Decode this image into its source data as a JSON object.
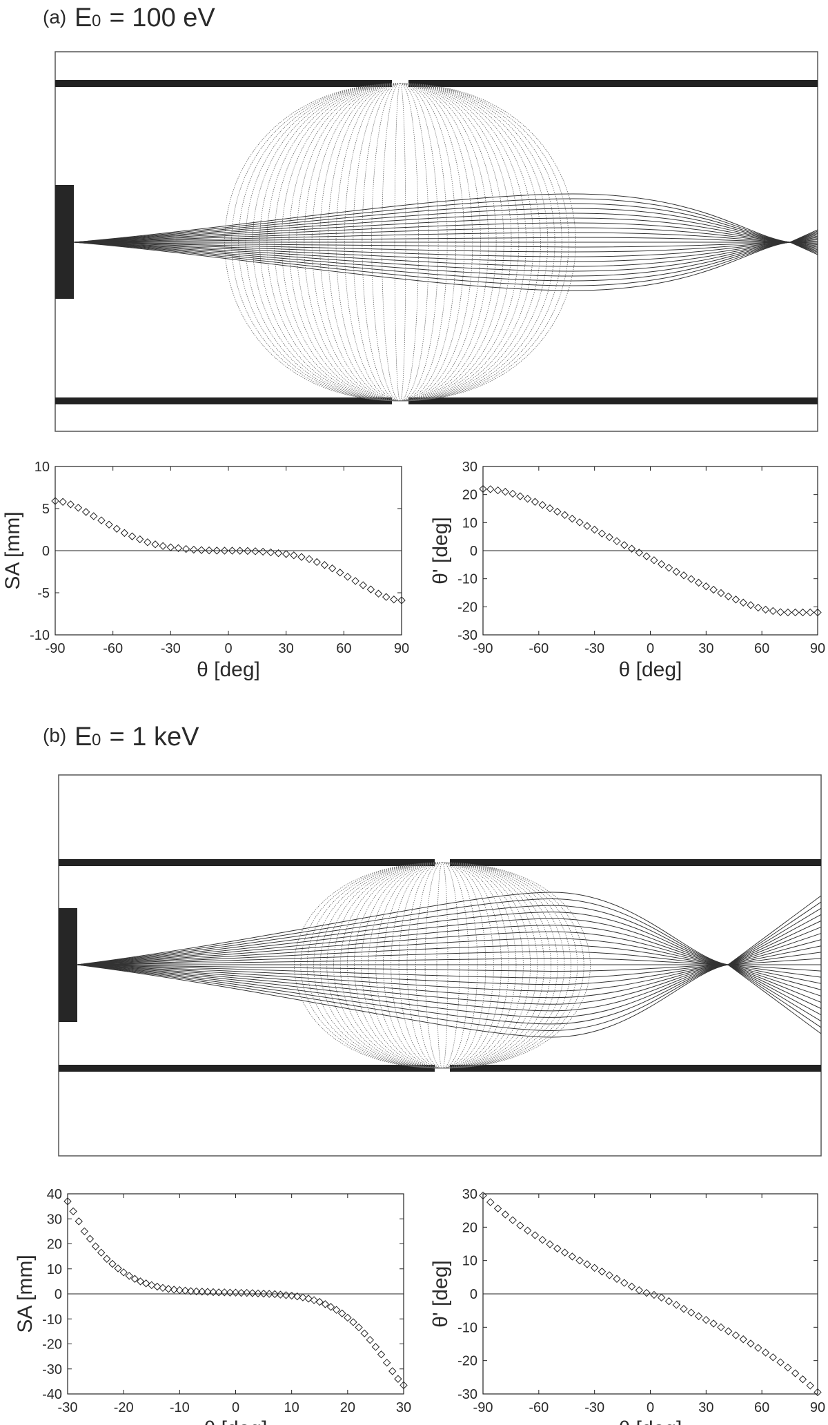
{
  "panels": [
    {
      "tag": "(a)",
      "energy_symbol": "E",
      "energy_sub": "0",
      "energy_rest": " = 100 eV"
    },
    {
      "tag": "(b)",
      "energy_symbol": "E",
      "energy_sub": "0",
      "energy_rest": " = 1 keV"
    }
  ],
  "colors": {
    "ink": "#222222",
    "ray": "#333333",
    "equipotential": "#666666",
    "frame": "#555555"
  },
  "chart_data": [
    {
      "type": "scatter",
      "panel": "(a)",
      "xlabel": "θ [deg]",
      "ylabel": "SA [mm]",
      "xlim": [
        -90,
        90
      ],
      "ylim": [
        -10,
        10
      ],
      "xticks": [
        -90,
        -60,
        -30,
        0,
        30,
        60,
        90
      ],
      "yticks": [
        -10,
        -5,
        0,
        5,
        10
      ],
      "marker": "diamond",
      "series": [
        {
          "x": [
            -90,
            -86,
            -82,
            -78,
            -74,
            -70,
            -66,
            -62,
            -58,
            -54,
            -50,
            -46,
            -42,
            -38,
            -34,
            -30,
            -26,
            -22,
            -18,
            -14,
            -10,
            -6,
            -2,
            2,
            6,
            10,
            14,
            18,
            22,
            26,
            30,
            34,
            38,
            42,
            46,
            50,
            54,
            58,
            62,
            66,
            70,
            74,
            78,
            82,
            86,
            90
          ],
          "y": [
            5.9,
            5.8,
            5.5,
            5.1,
            4.6,
            4.1,
            3.6,
            3.1,
            2.6,
            2.1,
            1.7,
            1.35,
            1.0,
            0.75,
            0.55,
            0.4,
            0.3,
            0.2,
            0.12,
            0.07,
            0.03,
            0.01,
            0.0,
            0.0,
            -0.01,
            -0.03,
            -0.07,
            -0.12,
            -0.2,
            -0.3,
            -0.4,
            -0.55,
            -0.75,
            -1.0,
            -1.35,
            -1.7,
            -2.1,
            -2.6,
            -3.1,
            -3.6,
            -4.1,
            -4.6,
            -5.1,
            -5.5,
            -5.8,
            -5.9
          ]
        }
      ]
    },
    {
      "type": "scatter",
      "panel": "(a)",
      "xlabel": "θ [deg]",
      "ylabel": "θ' [deg]",
      "xlim": [
        -90,
        90
      ],
      "ylim": [
        -30,
        30
      ],
      "xticks": [
        -90,
        -60,
        -30,
        0,
        30,
        60,
        90
      ],
      "yticks": [
        -30,
        -20,
        -10,
        0,
        10,
        20,
        30
      ],
      "marker": "diamond",
      "series": [
        {
          "x": [
            -90,
            -86,
            -82,
            -78,
            -74,
            -70,
            -66,
            -62,
            -58,
            -54,
            -50,
            -46,
            -42,
            -38,
            -34,
            -30,
            -26,
            -22,
            -18,
            -14,
            -10,
            -6,
            -2,
            2,
            6,
            10,
            14,
            18,
            22,
            26,
            30,
            34,
            38,
            42,
            46,
            50,
            54,
            58,
            62,
            66,
            70,
            74,
            78,
            82,
            86,
            90
          ],
          "y": [
            22.0,
            21.9,
            21.5,
            21.0,
            20.3,
            19.4,
            18.5,
            17.4,
            16.3,
            15.1,
            13.9,
            12.7,
            11.4,
            10.1,
            8.8,
            7.5,
            6.1,
            4.8,
            3.4,
            2.0,
            0.7,
            -0.7,
            -2.0,
            -3.4,
            -4.8,
            -6.1,
            -7.5,
            -8.8,
            -10.1,
            -11.4,
            -12.7,
            -13.9,
            -15.1,
            -16.3,
            -17.4,
            -18.5,
            -19.4,
            -20.3,
            -21.0,
            -21.5,
            -21.9,
            -22.0,
            -22.0,
            -22.0,
            -22.0,
            -22.0
          ]
        }
      ]
    },
    {
      "type": "scatter",
      "panel": "(b)",
      "xlabel": "θ [deg]",
      "ylabel": "SA [mm]",
      "xlim": [
        -30,
        30
      ],
      "ylim": [
        -40,
        40
      ],
      "xticks": [
        -30,
        -20,
        -10,
        0,
        10,
        20,
        30
      ],
      "yticks": [
        -40,
        -30,
        -20,
        -10,
        0,
        10,
        20,
        30,
        40
      ],
      "marker": "diamond",
      "series": [
        {
          "x": [
            -30,
            -29,
            -28,
            -27,
            -26,
            -25,
            -24,
            -23,
            -22,
            -21,
            -20,
            -19,
            -18,
            -17,
            -16,
            -15,
            -14,
            -13,
            -12,
            -11,
            -10,
            -9,
            -8,
            -7,
            -6,
            -5,
            -4,
            -3,
            -2,
            -1,
            0,
            1,
            2,
            3,
            4,
            5,
            6,
            7,
            8,
            9,
            10,
            11,
            12,
            13,
            14,
            15,
            16,
            17,
            18,
            19,
            20,
            21,
            22,
            23,
            24,
            25,
            26,
            27,
            28,
            29,
            30
          ],
          "y": [
            37,
            33,
            29,
            25,
            22,
            19,
            16.5,
            14,
            12,
            10.2,
            8.6,
            7.2,
            6.0,
            5.0,
            4.2,
            3.5,
            2.9,
            2.4,
            2.0,
            1.7,
            1.5,
            1.3,
            1.1,
            1.0,
            0.9,
            0.8,
            0.7,
            0.6,
            0.6,
            0.5,
            0.5,
            0.4,
            0.4,
            0.3,
            0.2,
            0.1,
            0.0,
            -0.1,
            -0.3,
            -0.5,
            -0.7,
            -1.0,
            -1.4,
            -1.9,
            -2.5,
            -3.2,
            -4.1,
            -5.2,
            -6.4,
            -7.8,
            -9.5,
            -11.3,
            -13.4,
            -15.8,
            -18.4,
            -21.2,
            -24.2,
            -27.5,
            -30.9,
            -34.0,
            -36.5
          ]
        }
      ]
    },
    {
      "type": "scatter",
      "panel": "(b)",
      "xlabel": "θ [deg]",
      "ylabel": "θ' [deg]",
      "xlim": [
        -90,
        90
      ],
      "ylim": [
        -30,
        30
      ],
      "xticks": [
        -90,
        -60,
        -30,
        0,
        30,
        60,
        90
      ],
      "yticks": [
        -30,
        -20,
        -10,
        0,
        10,
        20,
        30
      ],
      "marker": "diamond",
      "series": [
        {
          "x": [
            -90,
            -86,
            -82,
            -78,
            -74,
            -70,
            -66,
            -62,
            -58,
            -54,
            -50,
            -46,
            -42,
            -38,
            -34,
            -30,
            -26,
            -22,
            -18,
            -14,
            -10,
            -6,
            -2,
            2,
            6,
            10,
            14,
            18,
            22,
            26,
            30,
            34,
            38,
            42,
            46,
            50,
            54,
            58,
            62,
            66,
            70,
            74,
            78,
            82,
            86,
            90
          ],
          "y": [
            29.5,
            27.5,
            25.6,
            23.8,
            22.1,
            20.5,
            19.0,
            17.6,
            16.2,
            14.9,
            13.6,
            12.4,
            11.2,
            10.0,
            8.9,
            7.8,
            6.7,
            5.6,
            4.5,
            3.3,
            2.2,
            1.1,
            0.3,
            -0.3,
            -1.1,
            -2.2,
            -3.3,
            -4.5,
            -5.6,
            -6.7,
            -7.8,
            -8.9,
            -10.0,
            -11.2,
            -12.4,
            -13.6,
            -14.9,
            -16.2,
            -17.6,
            -19.0,
            -20.5,
            -22.1,
            -23.8,
            -25.6,
            -27.5,
            -29.5
          ]
        }
      ]
    }
  ]
}
